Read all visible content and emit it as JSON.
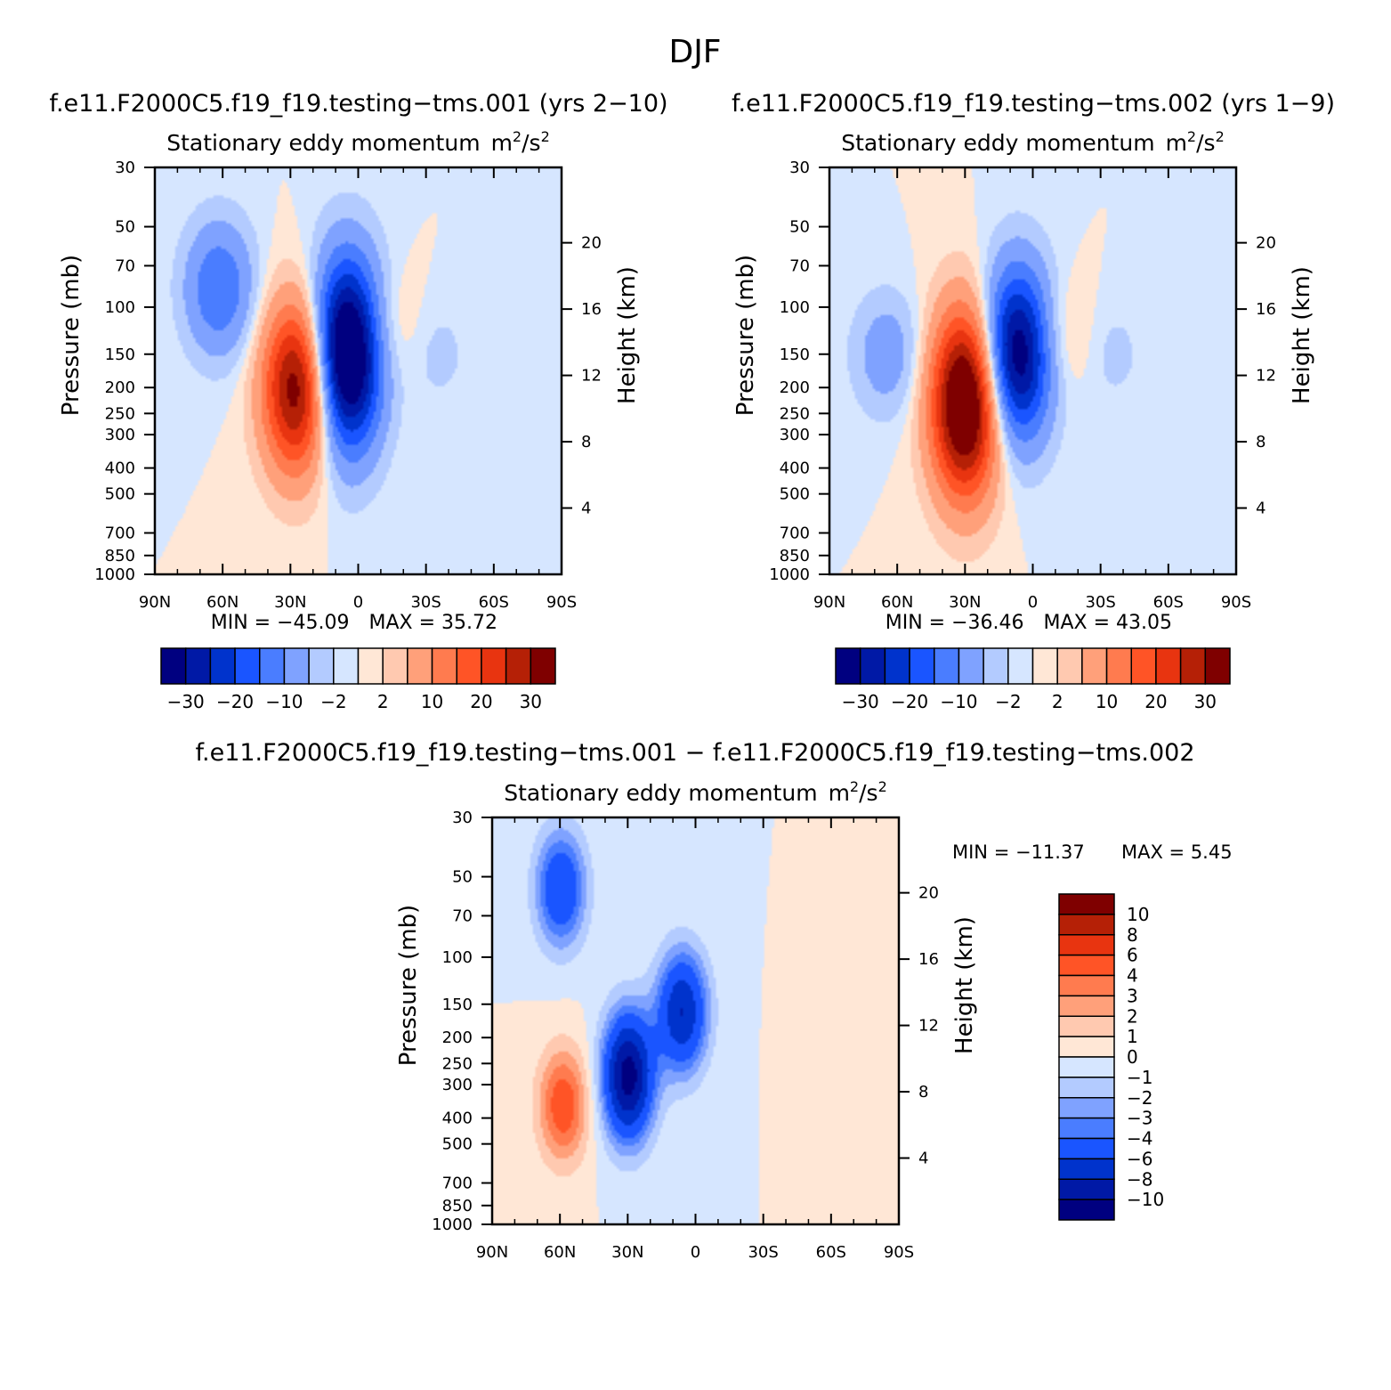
{
  "figure_title": "DJF",
  "chart_data": [
    {
      "type": "heatmap",
      "case_title": "f.e11.F2000C5.f19_f19.testing−tms.001 (yrs 2−10)",
      "title": "Stationary eddy momentum",
      "units_base": "m",
      "units_mid": "/s",
      "units_sup": "2",
      "ylabel": "Pressure (mb)",
      "ylabel_right": "Height (km)",
      "x_ticks": [
        "90N",
        "60N",
        "30N",
        "0",
        "30S",
        "60S",
        "90S"
      ],
      "y_ticks": [
        "30",
        "50",
        "70",
        "100",
        "150",
        "200",
        "250",
        "300",
        "400",
        "500",
        "700",
        "850",
        "1000"
      ],
      "height_ticks": [
        "4",
        "8",
        "12",
        "16",
        "20"
      ],
      "xlim": [
        90,
        -90
      ],
      "ylim": [
        1000,
        30
      ],
      "y_scale": "log",
      "min_label": "MIN = −45.09",
      "max_label": "MAX =  35.72",
      "min_value": -45.09,
      "max_value": 35.72,
      "colorbar_orientation": "horizontal",
      "colorbar_labels": [
        "−30",
        "−20",
        "−10",
        "−2",
        "2",
        "10",
        "20",
        "30"
      ],
      "contour_levels": [
        -35,
        -30,
        -25,
        -20,
        -15,
        -10,
        -5,
        -2,
        0,
        2,
        5,
        10,
        15,
        20,
        25,
        30,
        35
      ],
      "features": [
        {
          "lat": 5,
          "pressure": 150,
          "value": -45
        },
        {
          "lat": 27,
          "pressure": 200,
          "value": 35
        },
        {
          "lat": 62,
          "pressure": 85,
          "value": -15
        },
        {
          "lat": -12,
          "pressure": 120,
          "value": 5
        },
        {
          "lat": -35,
          "pressure": 150,
          "value": -3
        }
      ]
    },
    {
      "type": "heatmap",
      "case_title": "f.e11.F2000C5.f19_f19.testing−tms.002 (yrs 1−9)",
      "title": "Stationary eddy momentum",
      "units_base": "m",
      "units_mid": "/s",
      "units_sup": "2",
      "ylabel": "Pressure (mb)",
      "ylabel_right": "Height (km)",
      "x_ticks": [
        "90N",
        "60N",
        "30N",
        "0",
        "30S",
        "60S",
        "90S"
      ],
      "y_ticks": [
        "30",
        "50",
        "70",
        "100",
        "150",
        "200",
        "250",
        "300",
        "400",
        "500",
        "700",
        "850",
        "1000"
      ],
      "height_ticks": [
        "4",
        "8",
        "12",
        "16",
        "20"
      ],
      "xlim": [
        90,
        -90
      ],
      "ylim": [
        1000,
        30
      ],
      "y_scale": "log",
      "min_label": "MIN = −36.46",
      "max_label": "MAX =  43.05",
      "min_value": -36.46,
      "max_value": 43.05,
      "colorbar_orientation": "horizontal",
      "colorbar_labels": [
        "−30",
        "−20",
        "−10",
        "−2",
        "2",
        "10",
        "20",
        "30"
      ],
      "contour_levels": [
        -35,
        -30,
        -25,
        -20,
        -15,
        -10,
        -5,
        -2,
        0,
        2,
        5,
        10,
        15,
        20,
        25,
        30,
        35
      ],
      "features": [
        {
          "lat": 7,
          "pressure": 150,
          "value": -36
        },
        {
          "lat": 30,
          "pressure": 230,
          "value": 43
        },
        {
          "lat": 65,
          "pressure": 150,
          "value": -8
        },
        {
          "lat": -12,
          "pressure": 130,
          "value": 5
        },
        {
          "lat": -35,
          "pressure": 150,
          "value": -3
        }
      ]
    },
    {
      "type": "heatmap",
      "case_title": "f.e11.F2000C5.f19_f19.testing−tms.001 − f.e11.F2000C5.f19_f19.testing−tms.002",
      "title": "Stationary eddy momentum",
      "units_base": "m",
      "units_mid": "/s",
      "units_sup": "2",
      "ylabel": "Pressure (mb)",
      "ylabel_right": "Height (km)",
      "x_ticks": [
        "90N",
        "60N",
        "30N",
        "0",
        "30S",
        "60S",
        "90S"
      ],
      "y_ticks": [
        "30",
        "50",
        "70",
        "100",
        "150",
        "200",
        "250",
        "300",
        "400",
        "500",
        "700",
        "850",
        "1000"
      ],
      "height_ticks": [
        "4",
        "8",
        "12",
        "16",
        "20"
      ],
      "xlim": [
        90,
        -90
      ],
      "ylim": [
        1000,
        30
      ],
      "y_scale": "log",
      "min_label": "MIN = −11.37",
      "max_label": "MAX =    5.45",
      "min_value": -11.37,
      "max_value": 5.45,
      "colorbar_orientation": "vertical",
      "colorbar_labels": [
        "10",
        "8",
        "6",
        "4",
        "3",
        "2",
        "1",
        "0",
        "−1",
        "−2",
        "−3",
        "−4",
        "−6",
        "−8",
        "−10"
      ],
      "contour_levels": [
        -10,
        -8,
        -6,
        -4,
        -3,
        -2,
        -1,
        0,
        1,
        2,
        3,
        4,
        6,
        8,
        10
      ],
      "features": [
        {
          "lat": 60,
          "pressure": 55,
          "value": -6
        },
        {
          "lat": 30,
          "pressure": 280,
          "value": -11
        },
        {
          "lat": 6,
          "pressure": 160,
          "value": -8
        },
        {
          "lat": 59,
          "pressure": 360,
          "value": 5
        },
        {
          "lat": -60,
          "pressure": 200,
          "value": 1
        }
      ]
    }
  ],
  "colors": {
    "blue_scale": [
      "#000080",
      "#0019a6",
      "#0033cc",
      "#1a55ff",
      "#4a7dff",
      "#7fa2ff",
      "#b3cbff",
      "#d6e6ff"
    ],
    "red_scale": [
      "#ffe7d6",
      "#ffc9b0",
      "#ffa07a",
      "#ff7b4f",
      "#ff5426",
      "#e83410",
      "#b52006",
      "#7f0000"
    ],
    "diff_scale": [
      "#000080",
      "#0019a6",
      "#0033cc",
      "#1a55ff",
      "#4a7dff",
      "#7fa2ff",
      "#b3cbff",
      "#d6e6ff",
      "#ffe7d6",
      "#ffc9b0",
      "#ffa07a",
      "#ff7b4f",
      "#ff5426",
      "#e83410",
      "#b52006",
      "#7f0000"
    ]
  }
}
